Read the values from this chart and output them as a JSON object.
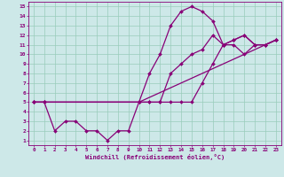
{
  "bg_color": "#cde8e8",
  "grid_color": "#99ccbb",
  "line_color": "#880077",
  "markersize": 2.0,
  "linewidth": 0.9,
  "xlabel": "Windchill (Refroidissement éolien,°C)",
  "tick_color": "#880077",
  "xlim": [
    -0.5,
    23.5
  ],
  "ylim": [
    0.5,
    15.5
  ],
  "xticks": [
    0,
    1,
    2,
    3,
    4,
    5,
    6,
    7,
    8,
    9,
    10,
    11,
    12,
    13,
    14,
    15,
    16,
    17,
    18,
    19,
    20,
    21,
    22,
    23
  ],
  "yticks": [
    1,
    2,
    3,
    4,
    5,
    6,
    7,
    8,
    9,
    10,
    11,
    12,
    13,
    14,
    15
  ],
  "lines": [
    {
      "x": [
        0,
        1,
        2,
        3,
        4,
        5,
        6,
        7,
        8,
        9,
        10,
        11,
        12,
        13,
        14,
        15,
        16,
        17,
        18,
        19,
        20,
        21,
        22,
        23
      ],
      "y": [
        5,
        5,
        2,
        3,
        3,
        2,
        2,
        1,
        2,
        2,
        5,
        8,
        10,
        13,
        14.5,
        15,
        14.5,
        13.5,
        11,
        11,
        10,
        11,
        11,
        11.5
      ]
    },
    {
      "x": [
        0,
        1,
        10,
        11,
        12,
        13,
        14,
        15,
        16,
        17,
        18,
        19,
        20,
        21,
        22,
        23
      ],
      "y": [
        5,
        5,
        5,
        5,
        5,
        8,
        9,
        10,
        10.5,
        12,
        11,
        11.5,
        12,
        11,
        11,
        11.5
      ]
    },
    {
      "x": [
        0,
        1,
        10,
        11,
        12,
        13,
        14,
        15,
        16,
        17,
        18,
        19,
        20,
        21,
        22,
        23
      ],
      "y": [
        5,
        5,
        5,
        5,
        5,
        5,
        5,
        5,
        7,
        9,
        11,
        11.5,
        12,
        11,
        11,
        11.5
      ]
    },
    {
      "x": [
        0,
        1,
        10,
        23
      ],
      "y": [
        5,
        5,
        5,
        11.5
      ]
    }
  ]
}
